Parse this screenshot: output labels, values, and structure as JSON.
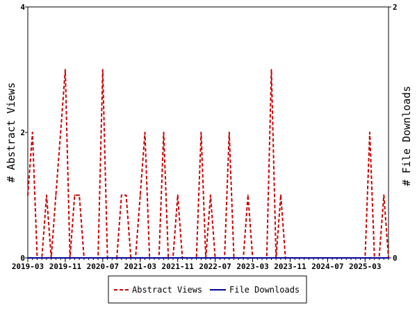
{
  "chart_data": {
    "type": "line",
    "title": "",
    "xlabel": "",
    "ylabel": "# Abstract Views",
    "y2label": "# File Downloads",
    "ylim": [
      0,
      4
    ],
    "y2lim": [
      0,
      2
    ],
    "yticks": [
      "0",
      "2",
      "4"
    ],
    "y2ticks": [
      "0",
      "2"
    ],
    "x_tick_labels": [
      "2019-03",
      "2019-11",
      "2020-07",
      "2021-03",
      "2021-11",
      "2022-07",
      "2023-03",
      "2023-11",
      "2024-07",
      "2025-03"
    ],
    "grid": false,
    "legend_position": "bottom",
    "series": [
      {
        "name": "Abstract Views",
        "color": "#cc0000",
        "style": "dashed",
        "axis": "left",
        "x": [
          "2019-03",
          "2019-04",
          "2019-05",
          "2019-06",
          "2019-07",
          "2019-08",
          "2019-09",
          "2019-10",
          "2019-11",
          "2019-12",
          "2020-01",
          "2020-02",
          "2020-03",
          "2020-04",
          "2020-05",
          "2020-06",
          "2020-07",
          "2020-08",
          "2020-09",
          "2020-10",
          "2020-11",
          "2020-12",
          "2021-01",
          "2021-02",
          "2021-03",
          "2021-04",
          "2021-05",
          "2021-06",
          "2021-07",
          "2021-08",
          "2021-09",
          "2021-10",
          "2021-11",
          "2021-12",
          "2022-01",
          "2022-02",
          "2022-03",
          "2022-04",
          "2022-05",
          "2022-06",
          "2022-07",
          "2022-08",
          "2022-09",
          "2022-10",
          "2022-11",
          "2022-12",
          "2023-01",
          "2023-02",
          "2023-03",
          "2023-04",
          "2023-05",
          "2023-06",
          "2023-07",
          "2023-08",
          "2023-09",
          "2023-10",
          "2023-11",
          "2023-12",
          "2024-01",
          "2024-02",
          "2024-03",
          "2024-04",
          "2024-05",
          "2024-06",
          "2024-07",
          "2024-08",
          "2024-09",
          "2024-10",
          "2024-11",
          "2024-12",
          "2025-01",
          "2025-02",
          "2025-03",
          "2025-04",
          "2025-05",
          "2025-06",
          "2025-07",
          "2025-08"
        ],
        "values": [
          1,
          2,
          0,
          0,
          1,
          0,
          1,
          2,
          3,
          0,
          1,
          1,
          0,
          0,
          0,
          0,
          3,
          0,
          0,
          0,
          1,
          1,
          0,
          0,
          1,
          2,
          0,
          0,
          0,
          2,
          0,
          0,
          1,
          0,
          0,
          0,
          0,
          2,
          0,
          1,
          0,
          0,
          0,
          2,
          0,
          0,
          0,
          1,
          0,
          0,
          0,
          0,
          3,
          0,
          1,
          0,
          0,
          0,
          0,
          0,
          0,
          0,
          0,
          0,
          0,
          0,
          0,
          0,
          0,
          0,
          0,
          0,
          0,
          2,
          0,
          0,
          1,
          0
        ]
      },
      {
        "name": "File Downloads",
        "color": "#000099",
        "style": "solid",
        "axis": "right",
        "x": [
          "2019-03",
          "2025-08"
        ],
        "values": [
          0,
          0
        ]
      }
    ]
  }
}
